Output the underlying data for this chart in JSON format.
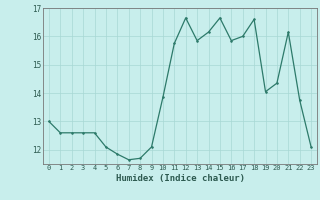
{
  "x": [
    0,
    1,
    2,
    3,
    4,
    5,
    6,
    7,
    8,
    9,
    10,
    11,
    12,
    13,
    14,
    15,
    16,
    17,
    18,
    19,
    20,
    21,
    22,
    23
  ],
  "y": [
    13.0,
    12.6,
    12.6,
    12.6,
    12.6,
    12.1,
    11.85,
    11.65,
    11.7,
    12.1,
    13.85,
    15.75,
    16.65,
    15.85,
    16.15,
    16.65,
    15.85,
    16.0,
    16.6,
    14.05,
    14.35,
    16.15,
    13.75,
    12.1
  ],
  "line_color": "#2d7a6a",
  "marker_color": "#2d7a6a",
  "bg_color": "#c8eeec",
  "grid_color": "#a8d8d4",
  "xlabel": "Humidex (Indice chaleur)",
  "ylim": [
    11.5,
    17.0
  ],
  "xlim": [
    -0.5,
    23.5
  ],
  "yticks": [
    12,
    13,
    14,
    15,
    16,
    17
  ],
  "xticks": [
    0,
    1,
    2,
    3,
    4,
    5,
    6,
    7,
    8,
    9,
    10,
    11,
    12,
    13,
    14,
    15,
    16,
    17,
    18,
    19,
    20,
    21,
    22,
    23
  ],
  "xtick_labels": [
    "0",
    "1",
    "2",
    "3",
    "4",
    "5",
    "6",
    "7",
    "8",
    "9",
    "10",
    "11",
    "12",
    "13",
    "14",
    "15",
    "16",
    "17",
    "18",
    "19",
    "20",
    "21",
    "22",
    "23"
  ]
}
